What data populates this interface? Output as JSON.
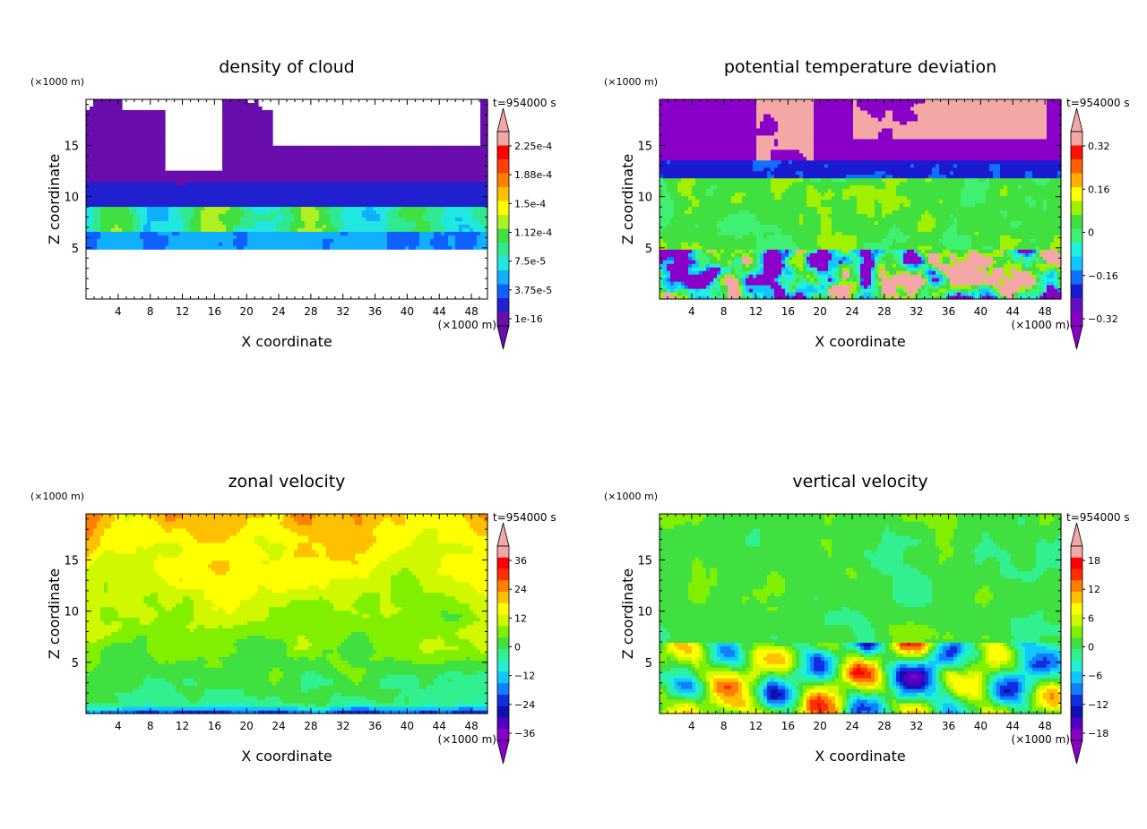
{
  "figure": {
    "xunit": "(×1000 m)",
    "yunit": "(×1000 m)",
    "time_label": "t=954000 s",
    "xlabel": "X coordinate",
    "ylabel": "Z coordinate"
  },
  "chart_data": [
    {
      "type": "heatmap",
      "title": "density of cloud",
      "xlabel": "X coordinate",
      "ylabel": "Z coordinate",
      "xunit": "(×1000 m)",
      "yunit": "(×1000 m)",
      "time_label": "t=954000 s",
      "xlim": [
        0,
        50
      ],
      "ylim": [
        0,
        19.5
      ],
      "xticks": [
        4,
        8,
        12,
        16,
        20,
        24,
        28,
        32,
        36,
        40,
        44,
        48
      ],
      "yticks": [
        5,
        10,
        15
      ],
      "colorbar": {
        "labels": [
          "2.25e-4",
          "1.88e-4",
          "1.5e-4",
          "1.12e-4",
          "7.5e-5",
          "3.75e-5",
          "1e-16"
        ],
        "levels": [
          0.000225,
          0.000188,
          0.00015,
          0.000112,
          7.5e-05,
          3.75e-05,
          1e-16
        ]
      },
      "field": "cloud"
    },
    {
      "type": "heatmap",
      "title": "potential temperature deviation",
      "xlabel": "X coordinate",
      "ylabel": "Z coordinate",
      "xunit": "(×1000 m)",
      "yunit": "(×1000 m)",
      "time_label": "t=954000 s",
      "xlim": [
        0,
        50
      ],
      "ylim": [
        0,
        19.5
      ],
      "xticks": [
        4,
        8,
        12,
        16,
        20,
        24,
        28,
        32,
        36,
        40,
        44,
        48
      ],
      "yticks": [
        5,
        10,
        15
      ],
      "colorbar": {
        "labels": [
          "0.32",
          "0.16",
          "0",
          "−0.16",
          "−0.32"
        ],
        "levels": [
          0.32,
          0.16,
          0,
          -0.16,
          -0.32
        ]
      },
      "field": "theta"
    },
    {
      "type": "heatmap",
      "title": "zonal velocity",
      "xlabel": "X coordinate",
      "ylabel": "Z coordinate",
      "xunit": "(×1000 m)",
      "yunit": "(×1000 m)",
      "time_label": "t=954000 s",
      "xlim": [
        0,
        50
      ],
      "ylim": [
        0,
        19.5
      ],
      "xticks": [
        4,
        8,
        12,
        16,
        20,
        24,
        28,
        32,
        36,
        40,
        44,
        48
      ],
      "yticks": [
        5,
        10,
        15
      ],
      "colorbar": {
        "labels": [
          "36",
          "24",
          "12",
          "0",
          "−12",
          "−24",
          "−36"
        ],
        "levels": [
          36,
          24,
          12,
          0,
          -12,
          -24,
          -36
        ]
      },
      "field": "u"
    },
    {
      "type": "heatmap",
      "title": "vertical velocity",
      "xlabel": "X coordinate",
      "ylabel": "Z coordinate",
      "xunit": "(×1000 m)",
      "yunit": "(×1000 m)",
      "time_label": "t=954000 s",
      "xlim": [
        0,
        50
      ],
      "ylim": [
        0,
        19.5
      ],
      "xticks": [
        4,
        8,
        12,
        16,
        20,
        24,
        28,
        32,
        36,
        40,
        44,
        48
      ],
      "yticks": [
        5,
        10,
        15
      ],
      "colorbar": {
        "labels": [
          "18",
          "12",
          "6",
          "0",
          "−6",
          "−12",
          "−18"
        ],
        "levels": [
          18,
          12,
          6,
          0,
          -6,
          -12,
          -18
        ]
      },
      "field": "w"
    }
  ],
  "colors": {
    "cloud_palette": [
      "#6a0dad",
      "#2020d0",
      "#1060ff",
      "#10b0ff",
      "#20e8e0",
      "#30e890",
      "#40e040",
      "#b0f020",
      "#ffff00",
      "#ffc000",
      "#ff8000",
      "#ff4000",
      "#ff0000",
      "#f4a7a7"
    ],
    "theta_palette": [
      "#8a00c8",
      "#6010c0",
      "#1a1ad0",
      "#1070ff",
      "#10c8ff",
      "#20f0e0",
      "#40f070",
      "#40e040",
      "#a0f000",
      "#ffff00",
      "#ffb000",
      "#ff6000",
      "#ff1000",
      "#f4a7a7"
    ],
    "vel_palette": [
      "#8a00c8",
      "#5000c0",
      "#1010b0",
      "#1030e0",
      "#1080ff",
      "#10c8ff",
      "#20f0d0",
      "#30f090",
      "#40e040",
      "#80f000",
      "#d0f800",
      "#ffff00",
      "#ffc000",
      "#ff8000",
      "#ff3000",
      "#ff0000",
      "#f4a7a7"
    ]
  }
}
